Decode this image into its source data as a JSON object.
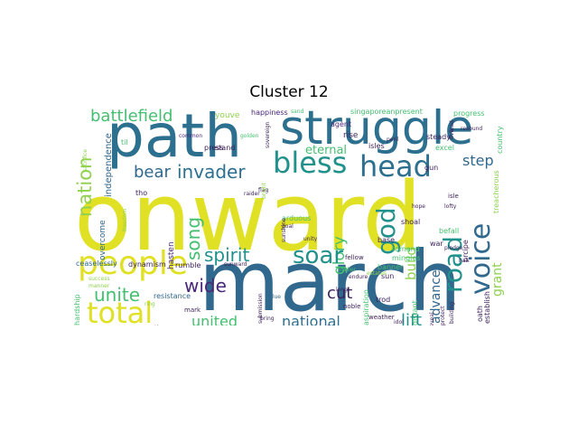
{
  "title": "Cluster 12",
  "palette": {
    "yellow": "#e0e024",
    "lightgreen": "#8fd14f",
    "green": "#44bf70",
    "teal": "#21918c",
    "blue": "#2c6f8e",
    "darkblue": "#31688e",
    "purple": "#482878",
    "dark": "#3b1f5a"
  },
  "words": {
    "onward": "onward",
    "path": "path",
    "struggle": "struggle",
    "march": "march",
    "bless": "bless",
    "head": "head",
    "people": "people",
    "total": "total",
    "voice": "voice",
    "road": "road",
    "god": "god",
    "soar": "soar",
    "invader": "invader",
    "battlefield": "battlefield",
    "nation": "nation",
    "spirit": "spirit",
    "unite": "unite",
    "wide": "wide",
    "united": "united",
    "national": "national",
    "lift": "lift",
    "glory": "glory",
    "grant": "grant",
    "cut": "cut",
    "advance": "advance",
    "build": "build",
    "step": "step",
    "eternal": "eternal",
    "bear": "bear",
    "song": "song",
    "independence": "independence",
    "overcome": "overcome",
    "ceaselessly": "ceaselessly",
    "dynamism": "dynamism",
    "rumble": "rumble",
    "sunward": "sunward",
    "resistance": "resistance",
    "mark": "mark",
    "hasten": "hasten",
    "press": "press",
    "stand": "stand",
    "youve": "youve",
    "happiness": "happiness",
    "agent": "agent",
    "singaporeanpresent": "singaporeanpresent",
    "progress": "progress",
    "rise": "rise",
    "isles": "isles",
    "steady": "steady",
    "country": "country",
    "treacherous": "treacherous",
    "shoal": "shoal",
    "war": "war",
    "befall": "befall",
    "precipe": "prcipe",
    "isle": "isle",
    "lofty": "lofty",
    "excel": "excel",
    "gun": "gun",
    "base": "base",
    "tomand": "tomand",
    "mingles": "mingles",
    "fellow": "fellow",
    "banner": "banner",
    "sun": "sun",
    "trod": "trod",
    "distant": "distant",
    "oath": "oath",
    "establish": "establish",
    "aspiration": "aspiration",
    "noble": "noble",
    "weather": "weather",
    "blue": "blue",
    "soldier": "soldier",
    "endure": "endure",
    "pledge": "pledge",
    "hall": "hall",
    "success": "success",
    "hardship": "hardship",
    "arduous": "arduous",
    "goal": "goal",
    "unity": "unity",
    "sunshine": "sunshine",
    "submission": "submission",
    "tho": "tho",
    "til": "til",
    "common": "common",
    "golden": "golden",
    "sovereign": "sovereign",
    "sand": "sand",
    "lead": "lead",
    "resound": "resound",
    "flag": "flag",
    "peril": "peril",
    "hope": "hope",
    "protect": "protect",
    "reveal": "reveal",
    "building": "building",
    "idol": "idol",
    "long": "long",
    "forever": "forever",
    "bright": "bright",
    "raider": "raider",
    "century": "century",
    "generation": "generation",
    "bring": "bring",
    "manner": "manner",
    "sacrifice": "sacrifice",
    "ring": "ring",
    "estates": "estates",
    "freedom": "freedom",
    "five": "five"
  }
}
